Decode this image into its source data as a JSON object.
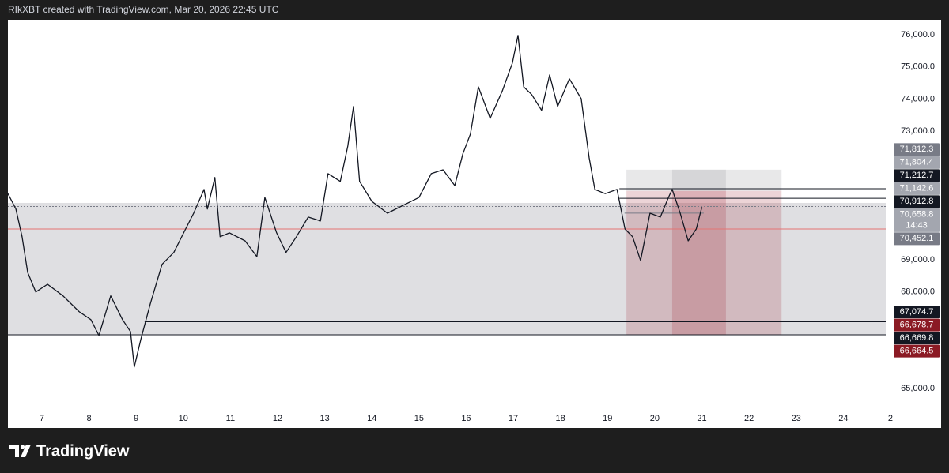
{
  "header": "RIkXBT created with TradingView.com, Mar 20, 2026 22:45 UTC",
  "footer": "TradingView",
  "chart_data": {
    "type": "line",
    "x": [
      6.28,
      6.45,
      6.58,
      6.7,
      6.87,
      7.12,
      7.45,
      7.79,
      8.04,
      8.21,
      8.46,
      8.71,
      8.88,
      8.96,
      9.1,
      9.3,
      9.55,
      9.8,
      10.05,
      10.22,
      10.44,
      10.51,
      10.67,
      10.78,
      10.98,
      11.31,
      11.56,
      11.73,
      11.98,
      12.18,
      12.4,
      12.65,
      12.91,
      13.07,
      13.33,
      13.49,
      13.61,
      13.74,
      14.0,
      14.33,
      14.67,
      15.0,
      15.26,
      15.51,
      15.76,
      15.93,
      16.09,
      16.26,
      16.51,
      16.77,
      16.98,
      17.1,
      17.22,
      17.39,
      17.6,
      17.77,
      17.94,
      18.19,
      18.44,
      18.61,
      18.73,
      18.95,
      19.2,
      19.37,
      19.53,
      19.7,
      19.9,
      20.12,
      20.29,
      20.37,
      20.54,
      20.71,
      20.88,
      21.0
    ],
    "series": [
      {
        "color": "#131722",
        "values": [
          71060,
          70580,
          69720,
          68610,
          68000,
          68240,
          67880,
          67390,
          67140,
          66650,
          67880,
          67140,
          66770,
          65670,
          66530,
          67630,
          68860,
          69230,
          69960,
          70450,
          71190,
          70580,
          71560,
          69720,
          69840,
          69590,
          69100,
          70940,
          69840,
          69230,
          69720,
          70330,
          70210,
          71680,
          71440,
          72540,
          73770,
          71440,
          70820,
          70450,
          70700,
          70940,
          71680,
          71800,
          71310,
          72300,
          72910,
          74380,
          73400,
          74260,
          75120,
          75980,
          74380,
          74140,
          73650,
          74750,
          73770,
          74630,
          74010,
          72170,
          71190,
          71060,
          71190,
          69960,
          69720,
          68980,
          70450,
          70330,
          70940,
          71190,
          70450,
          69590,
          69960,
          70640
        ]
      }
    ],
    "xlim": [
      6.28,
      24.9
    ],
    "ylim": [
      64435,
      76466
    ],
    "xticks": [
      7,
      8,
      9,
      10,
      11,
      12,
      13,
      14,
      15,
      16,
      17,
      18,
      19,
      20,
      21,
      22,
      23,
      24,
      {
        "value": 25,
        "label": "2"
      }
    ],
    "yticks": [
      {
        "value": 76000,
        "label": "76,000.0"
      },
      {
        "value": 75000,
        "label": "75,000.0"
      },
      {
        "value": 74000,
        "label": "74,000.0"
      },
      {
        "value": 73000,
        "label": "73,000.0"
      },
      {
        "value": 69000,
        "label": "69,000.0"
      },
      {
        "value": 68000,
        "label": "68,000.0"
      },
      {
        "value": 65000,
        "label": "65,000.0"
      }
    ],
    "zones": [
      {
        "x": [
          6.28,
          24.9
        ],
        "y": [
          70770,
          66678.7
        ],
        "color": "rgba(120,123,134,0.24)"
      }
    ],
    "positions": [
      {
        "x": [
          19.4,
          21.51
        ],
        "target": [
          71804.4,
          71142.6
        ],
        "stop": [
          71142.6,
          66678.7
        ]
      },
      {
        "x": [
          20.37,
          22.69
        ],
        "target": [
          71804.4,
          71142.6
        ],
        "stop": [
          71142.6,
          66678.7
        ]
      }
    ],
    "target_color": "rgba(150,150,155,0.22)",
    "stop_color": "rgba(160,40,55,0.2)",
    "hlines": [
      {
        "value": 71212.7,
        "x": [
          19.25,
          24.9
        ],
        "color": "#131722",
        "dash": false
      },
      {
        "value": 70912.8,
        "x": [
          19.25,
          24.9
        ],
        "color": "#131722",
        "dash": false
      },
      {
        "value": 70658.8,
        "x": [
          6.28,
          24.9
        ],
        "color": "#787b86",
        "dash": true
      },
      {
        "value": 70452.1,
        "x": [
          19.36,
          21.04
        ],
        "color": "#787b86",
        "dash": false
      },
      {
        "value": 69960,
        "x": [
          6.28,
          24.9
        ],
        "color": "#e57373",
        "dash": false
      },
      {
        "value": 67074.7,
        "x": [
          9.18,
          24.9
        ],
        "color": "#131722",
        "dash": false
      },
      {
        "value": 66669.8,
        "x": [
          6.28,
          24.9
        ],
        "color": "#131722",
        "dash": false
      }
    ],
    "price_labels": [
      {
        "value": 71812.3,
        "label": "71,812.3",
        "color": "#787b86"
      },
      {
        "value": 71804.4,
        "label": "71,804.4",
        "color": "#a3a6af"
      },
      {
        "value": 71212.7,
        "label": "71,212.7",
        "color": "#131722"
      },
      {
        "value": 71142.6,
        "label": "71,142.6",
        "color": "#a3a6af"
      },
      {
        "value": 70912.8,
        "label": "70,912.8",
        "color": "#131722"
      },
      {
        "value": 70658.8,
        "label": "70,658.8",
        "color": "#a3a6af",
        "countdown": "14:43"
      },
      {
        "value": 70452.1,
        "label": "70,452.1",
        "color": "#787b86"
      },
      {
        "value": 67074.7,
        "label": "67,074.7",
        "color": "#131722"
      },
      {
        "value": 66678.7,
        "label": "66,678.7",
        "color": "#8b1a24"
      },
      {
        "value": 66669.8,
        "label": "66,669.8",
        "color": "#131722"
      },
      {
        "value": 66664.5,
        "label": "66,664.5",
        "color": "#8b1a24"
      }
    ]
  }
}
